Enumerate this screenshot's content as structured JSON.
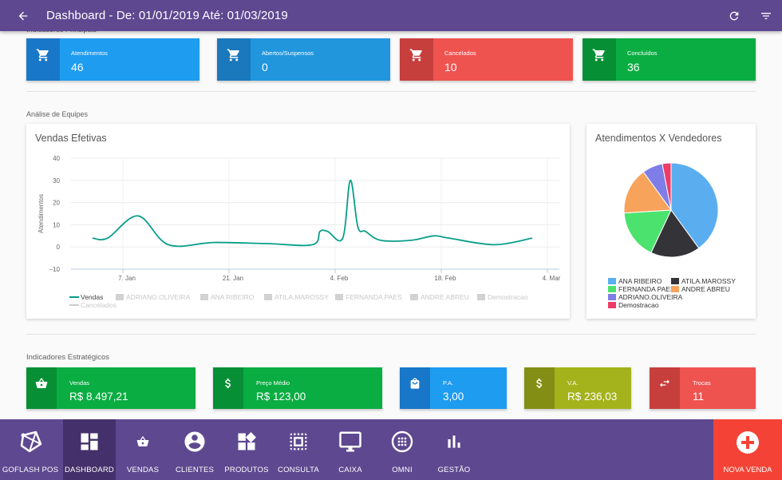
{
  "header": {
    "title": "Dashboard - De: 01/01/2019 Até: 01/03/2019"
  },
  "sections": {
    "principais": "Indicadores Principais",
    "equipes": "Análise de Equipes",
    "estrategicos": "Indicadores Estratégicos"
  },
  "kpis": [
    {
      "label": "Atendimentos",
      "value": "46",
      "color": "#1e9cf0",
      "icon_bg": "#1877c8",
      "icon": "cart-icon"
    },
    {
      "label": "Abertos/Suspensos",
      "value": "0",
      "color": "#2196dd",
      "icon_bg": "#1a78bd",
      "icon": "cart-icon"
    },
    {
      "label": "Cancelados",
      "value": "10",
      "color": "#ef5350",
      "icon_bg": "#c63f3d",
      "icon": "cart-icon"
    },
    {
      "label": "Concluídos",
      "value": "36",
      "color": "#0aad42",
      "icon_bg": "#078f36",
      "icon": "cart-icon"
    }
  ],
  "strategic": [
    {
      "label": "Vendas",
      "value": "R$ 8.497,21",
      "color": "#0aad42",
      "icon_bg": "#078f36",
      "icon": "basket-icon"
    },
    {
      "label": "Preço Médio",
      "value": "R$ 123,00",
      "color": "#0aad42",
      "icon_bg": "#078f36",
      "icon": "dollar-icon"
    },
    {
      "label": "P.A.",
      "value": "3,00",
      "color": "#1e9cf0",
      "icon_bg": "#1877c8",
      "icon": "bag-icon"
    },
    {
      "label": "V.A.",
      "value": "R$ 236,03",
      "color": "#a4b31b",
      "icon_bg": "#838f14",
      "icon": "dollar-icon"
    },
    {
      "label": "Trocas",
      "value": "11",
      "color": "#ef5350",
      "icon_bg": "#c63f3d",
      "icon": "swap-icon"
    }
  ],
  "line_chart_title": "Vendas Efetivas",
  "pie_chart_title": "Atendimentos X Vendedores",
  "chart_data": [
    {
      "type": "line",
      "title": "Vendas Efetivas",
      "ylabel": "Atendimentos",
      "xlabel": "",
      "ylim": [
        -10,
        40
      ],
      "yticks": [
        "40",
        "30",
        "20",
        "10",
        "0",
        "−10"
      ],
      "xticks": [
        "7. Jan",
        "21. Jan",
        "4. Feb",
        "18. Feb",
        "4. Mar"
      ],
      "series": [
        {
          "name": "Vendas",
          "color": "#0a9e8a",
          "visible": true,
          "x": [
            "2019-01-03",
            "2019-01-05",
            "2019-01-09",
            "2019-01-13",
            "2019-01-19",
            "2019-01-26",
            "2019-02-01",
            "2019-02-02",
            "2019-02-03",
            "2019-02-05",
            "2019-02-06",
            "2019-02-07",
            "2019-02-08",
            "2019-02-10",
            "2019-02-14",
            "2019-02-17",
            "2019-02-19",
            "2019-02-25",
            "2019-03-02"
          ],
          "y": [
            4,
            4,
            14,
            1,
            2,
            1.5,
            1,
            7,
            7,
            4,
            30,
            9,
            7,
            3,
            3,
            5,
            4,
            1,
            4
          ]
        },
        {
          "name": "ADRIANO.OLIVEIRA",
          "visible": false
        },
        {
          "name": "ANA RIBEIRO",
          "visible": false
        },
        {
          "name": "ATILA.MAROSSY",
          "visible": false
        },
        {
          "name": "FERNANDA PAES",
          "visible": false
        },
        {
          "name": "ANDRE ABREU",
          "visible": false
        },
        {
          "name": "Demostracao",
          "visible": false
        },
        {
          "name": "Cancelados",
          "visible": false
        }
      ]
    },
    {
      "type": "pie",
      "title": "Atendimentos X Vendedores",
      "slices": [
        {
          "name": "ANA RIBEIRO",
          "value": 40,
          "color": "#5aaef0"
        },
        {
          "name": "ATILA.MAROSSY",
          "value": 17,
          "color": "#333338"
        },
        {
          "name": "FERNANDA PAES",
          "value": 17,
          "color": "#4be36d"
        },
        {
          "name": "ANDRE ABREU",
          "value": 16,
          "color": "#f7a35c"
        },
        {
          "name": "ADRIANO.OLIVEIRA",
          "value": 7,
          "color": "#7f7de8"
        },
        {
          "name": "Demostracao",
          "value": 3,
          "color": "#ee3b67"
        }
      ]
    }
  ],
  "nav": [
    {
      "label": "GOFLASH POS",
      "icon": "goflash-logo-icon"
    },
    {
      "label": "DASHBOARD",
      "icon": "dashboard-icon",
      "active": true
    },
    {
      "label": "VENDAS",
      "icon": "basket-icon"
    },
    {
      "label": "CLIENTES",
      "icon": "account-icon"
    },
    {
      "label": "PRODUTOS",
      "icon": "widgets-icon"
    },
    {
      "label": "CONSULTA",
      "icon": "select-frame-icon"
    },
    {
      "label": "CAIXA",
      "icon": "monitor-icon"
    },
    {
      "label": "OMNI",
      "icon": "omni-icon"
    },
    {
      "label": "GESTÃO",
      "icon": "bar-chart-icon"
    }
  ],
  "nav_new": {
    "label": "NOVA VENDA",
    "icon": "add-circle-icon"
  }
}
